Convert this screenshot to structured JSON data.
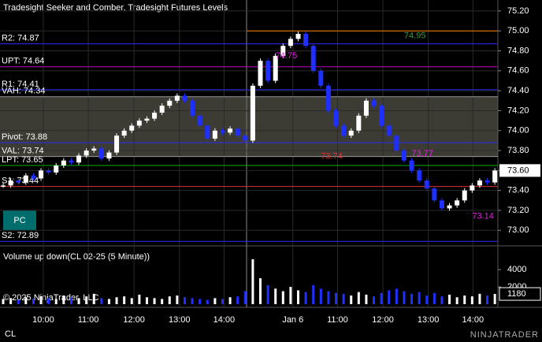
{
  "chart_data": [
    {
      "type": "line",
      "title": "Tradesight Seeker and Comber, Tradesight Futures Levels",
      "xlim": [
        -0.42,
        65.4
      ],
      "xticks": [
        {
          "value": 5.3,
          "label": "10:00"
        },
        {
          "value": 11.25,
          "label": "11:00"
        },
        {
          "value": 17.3,
          "label": "12:00"
        },
        {
          "value": 23.3,
          "label": "13:00"
        },
        {
          "value": 29.2,
          "label": "14:00"
        },
        {
          "value": 38.3,
          "label": "Jan 6"
        },
        {
          "value": 44.2,
          "label": "11:00"
        },
        {
          "value": 50.2,
          "label": "12:00"
        },
        {
          "value": 56.2,
          "label": "13:00"
        },
        {
          "value": 62.1,
          "label": "14:00"
        }
      ],
      "ylim": [
        72.86,
        75.31
      ],
      "yticks": [
        {
          "value": 75.2,
          "label": "75.20"
        },
        {
          "value": 75.0,
          "label": "75.00"
        },
        {
          "value": 74.8,
          "label": "74.80"
        },
        {
          "value": 74.6,
          "label": "74.60"
        },
        {
          "value": 74.4,
          "label": "74.40"
        },
        {
          "value": 74.2,
          "label": "74.20"
        },
        {
          "value": 74.0,
          "label": "74.00"
        },
        {
          "value": 73.8,
          "label": "73.80"
        },
        {
          "value": 73.6,
          "label": "73.60"
        },
        {
          "value": 73.4,
          "label": "73.40"
        },
        {
          "value": 73.2,
          "label": "73.20"
        },
        {
          "value": 73.0,
          "label": "73.00"
        }
      ],
      "grid": true,
      "up_color": "#ffffff",
      "down_color": "#1f2fff",
      "values": [
        73.45,
        73.5,
        73.48,
        73.55,
        73.52,
        73.6,
        73.58,
        73.65,
        73.7,
        73.68,
        73.75,
        73.8,
        73.82,
        73.72,
        73.78,
        73.95,
        74.0,
        74.05,
        74.1,
        74.12,
        74.18,
        74.25,
        74.3,
        74.35,
        74.3,
        74.15,
        74.05,
        73.92,
        74.0,
        73.98,
        74.02,
        73.95,
        73.9,
        74.45,
        74.7,
        74.5,
        74.75,
        74.85,
        74.92,
        74.97,
        74.85,
        74.6,
        74.45,
        74.2,
        74.05,
        73.95,
        74.0,
        74.15,
        74.3,
        74.25,
        74.05,
        73.95,
        73.8,
        73.7,
        73.6,
        73.5,
        73.42,
        73.3,
        73.22,
        73.25,
        73.3,
        73.4,
        73.45,
        73.5,
        73.48,
        73.6
      ],
      "levels": [
        {
          "label": "R2: 74.87",
          "value": 74.87,
          "color": "#2a2aff"
        },
        {
          "label": "UPT: 74.64",
          "value": 74.64,
          "color": "#c000c0"
        },
        {
          "label": "R1: 74.41",
          "value": 74.41,
          "color": "#2a2aff"
        },
        {
          "label": "VAH: 74.34",
          "value": 74.34,
          "color": "#9a9a9a"
        },
        {
          "label": "Pivot: 73.88",
          "value": 73.88,
          "color": "#2a2aff"
        },
        {
          "label": "VAL: 73.74",
          "value": 73.74,
          "color": "#9a9a9a"
        },
        {
          "label": "LPT: 73.65",
          "value": 73.65,
          "color": "#00b000"
        },
        {
          "label": "S1: 73.44",
          "value": 73.44,
          "color": "#e03030"
        },
        {
          "label": "S2: 72.89",
          "value": 72.89,
          "color": "#2a2aff"
        }
      ],
      "high_line": {
        "value": 75.0,
        "color": "#ff7f00"
      },
      "annotations": [
        {
          "value": 74.75,
          "x": 36,
          "color": "#e020e0"
        },
        {
          "value": 74.95,
          "x": 53,
          "color": "#30a030"
        },
        {
          "value": 73.74,
          "x": 42,
          "color": "#e03030"
        },
        {
          "value": 73.77,
          "x": 54,
          "color": "#e020e0"
        },
        {
          "value": 73.14,
          "x": 62,
          "color": "#e020e0"
        }
      ],
      "last_price": {
        "value": 73.6,
        "label": "73.60"
      },
      "button": "PC"
    },
    {
      "type": "bar",
      "title": "Volume up down(CL 02-25 (5 Minute))",
      "ylim": [
        0,
        6200
      ],
      "yticks": [
        2000,
        4000
      ],
      "values": [
        600,
        700,
        500,
        800,
        650,
        900,
        700,
        600,
        1000,
        800,
        700,
        900,
        1200,
        700,
        600,
        800,
        900,
        700,
        1100,
        800,
        700,
        600,
        900,
        1000,
        800,
        700,
        600,
        500,
        700,
        600,
        800,
        900,
        1500,
        5200,
        3000,
        2200,
        1800,
        1500,
        2000,
        1600,
        1400,
        2200,
        1800,
        1500,
        1300,
        1200,
        1000,
        1400,
        1100,
        900,
        1300,
        1600,
        1800,
        1500,
        1200,
        1400,
        1000,
        1300,
        900,
        1100,
        800,
        1000,
        900,
        1200,
        1000,
        1180
      ],
      "last_value": 1180
    }
  ],
  "copyright": "© 2025 NinjaTrader, LLC",
  "instrument": "CL",
  "brand": "NINJATRADER"
}
